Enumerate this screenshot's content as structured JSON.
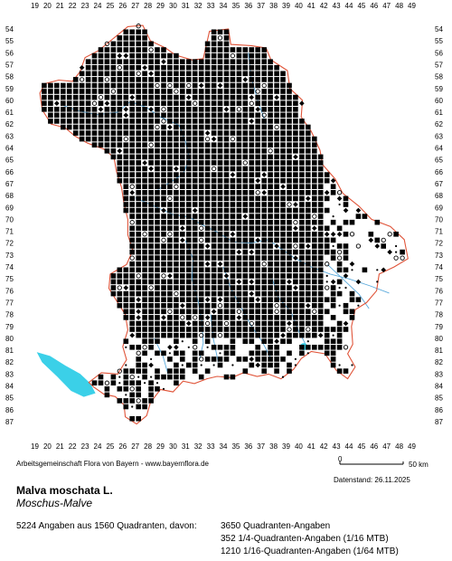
{
  "map": {
    "x_ticks": [
      19,
      20,
      21,
      22,
      23,
      24,
      25,
      26,
      27,
      28,
      29,
      30,
      31,
      32,
      33,
      34,
      35,
      36,
      37,
      38,
      39,
      40,
      41,
      42,
      43,
      44,
      45,
      46,
      47,
      48,
      49
    ],
    "y_ticks": [
      54,
      55,
      56,
      57,
      58,
      59,
      60,
      61,
      62,
      63,
      64,
      65,
      66,
      67,
      68,
      69,
      70,
      71,
      72,
      73,
      74,
      75,
      76,
      77,
      78,
      79,
      80,
      81,
      82,
      83,
      84,
      85,
      86,
      87
    ],
    "colors": {
      "border": "#e0553a",
      "rivers": "#5aaadc",
      "lake": "#3bd0e8",
      "symbol": "#000000"
    },
    "legend_symbols": [
      "filled-square",
      "hollow-circle",
      "filled-diamond",
      "small-dot"
    ]
  },
  "scale_bar": {
    "start_label": "0",
    "end_label": "50 km"
  },
  "footer": {
    "credit": "Arbeitsgemeinschaft Flora von Bayern - www.bayernflora.de",
    "date_label": "Datenstand: 26.11.2025",
    "species": "Malva moschata L.",
    "common_name": "Moschus-Malve",
    "summary": "5224 Angaben aus 1560 Quadranten, davon:",
    "stats": [
      "3650 Quadranten-Angaben",
      "352 1/4-Quadranten-Angaben (1/16 MTB)",
      "1210 1/16-Quadranten-Angaben (1/64 MTB)"
    ]
  }
}
